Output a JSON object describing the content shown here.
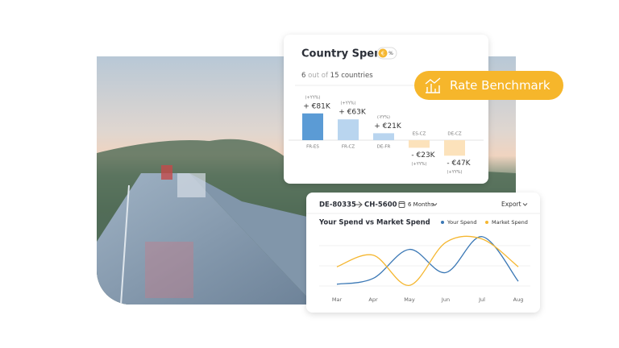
{
  "country_spend": {
    "title": "Country Spend",
    "currency_badge": "€",
    "percent_badge": "%",
    "count": "6",
    "count_joiner": "out of",
    "total": "15",
    "count_unit": "countries",
    "chart_data": {
      "type": "bar",
      "categories": [
        "FR-ES",
        "FR-CZ",
        "DE-FR",
        "ES-CZ",
        "DE-CZ"
      ],
      "values": [
        81,
        63,
        21,
        -23,
        -47
      ],
      "value_labels": [
        "+ €81K",
        "+ €63K",
        "+ €21K",
        "- €23K",
        "- €47K"
      ],
      "value_notes": [
        "(+YY%)",
        "(+YY%)",
        "(-YY%)",
        "(+YY%)",
        "(+YY%)"
      ],
      "colors": [
        "#5b9bd5",
        "#b9d5ef",
        "#b9d5ef",
        "#fce2bb",
        "#fce2bb"
      ]
    }
  },
  "badge": {
    "label": "Rate Benchmark"
  },
  "route_card": {
    "origin": "DE-80335",
    "destination": "CH-5600",
    "period": "6 Months",
    "export": "Export",
    "chart_data": {
      "type": "line",
      "title": "Your Spend vs Market Spend",
      "categories": [
        "Mar",
        "Apr",
        "May",
        "Jun",
        "Jul",
        "Aug"
      ],
      "ylim": [
        0,
        100
      ],
      "series": [
        {
          "name": "Your Spend",
          "color": "#3b78b5",
          "values": [
            10,
            20,
            70,
            30,
            92,
            15
          ]
        },
        {
          "name": "Market Spend",
          "color": "#f5b731",
          "values": [
            40,
            60,
            8,
            82,
            88,
            40
          ]
        }
      ]
    }
  }
}
